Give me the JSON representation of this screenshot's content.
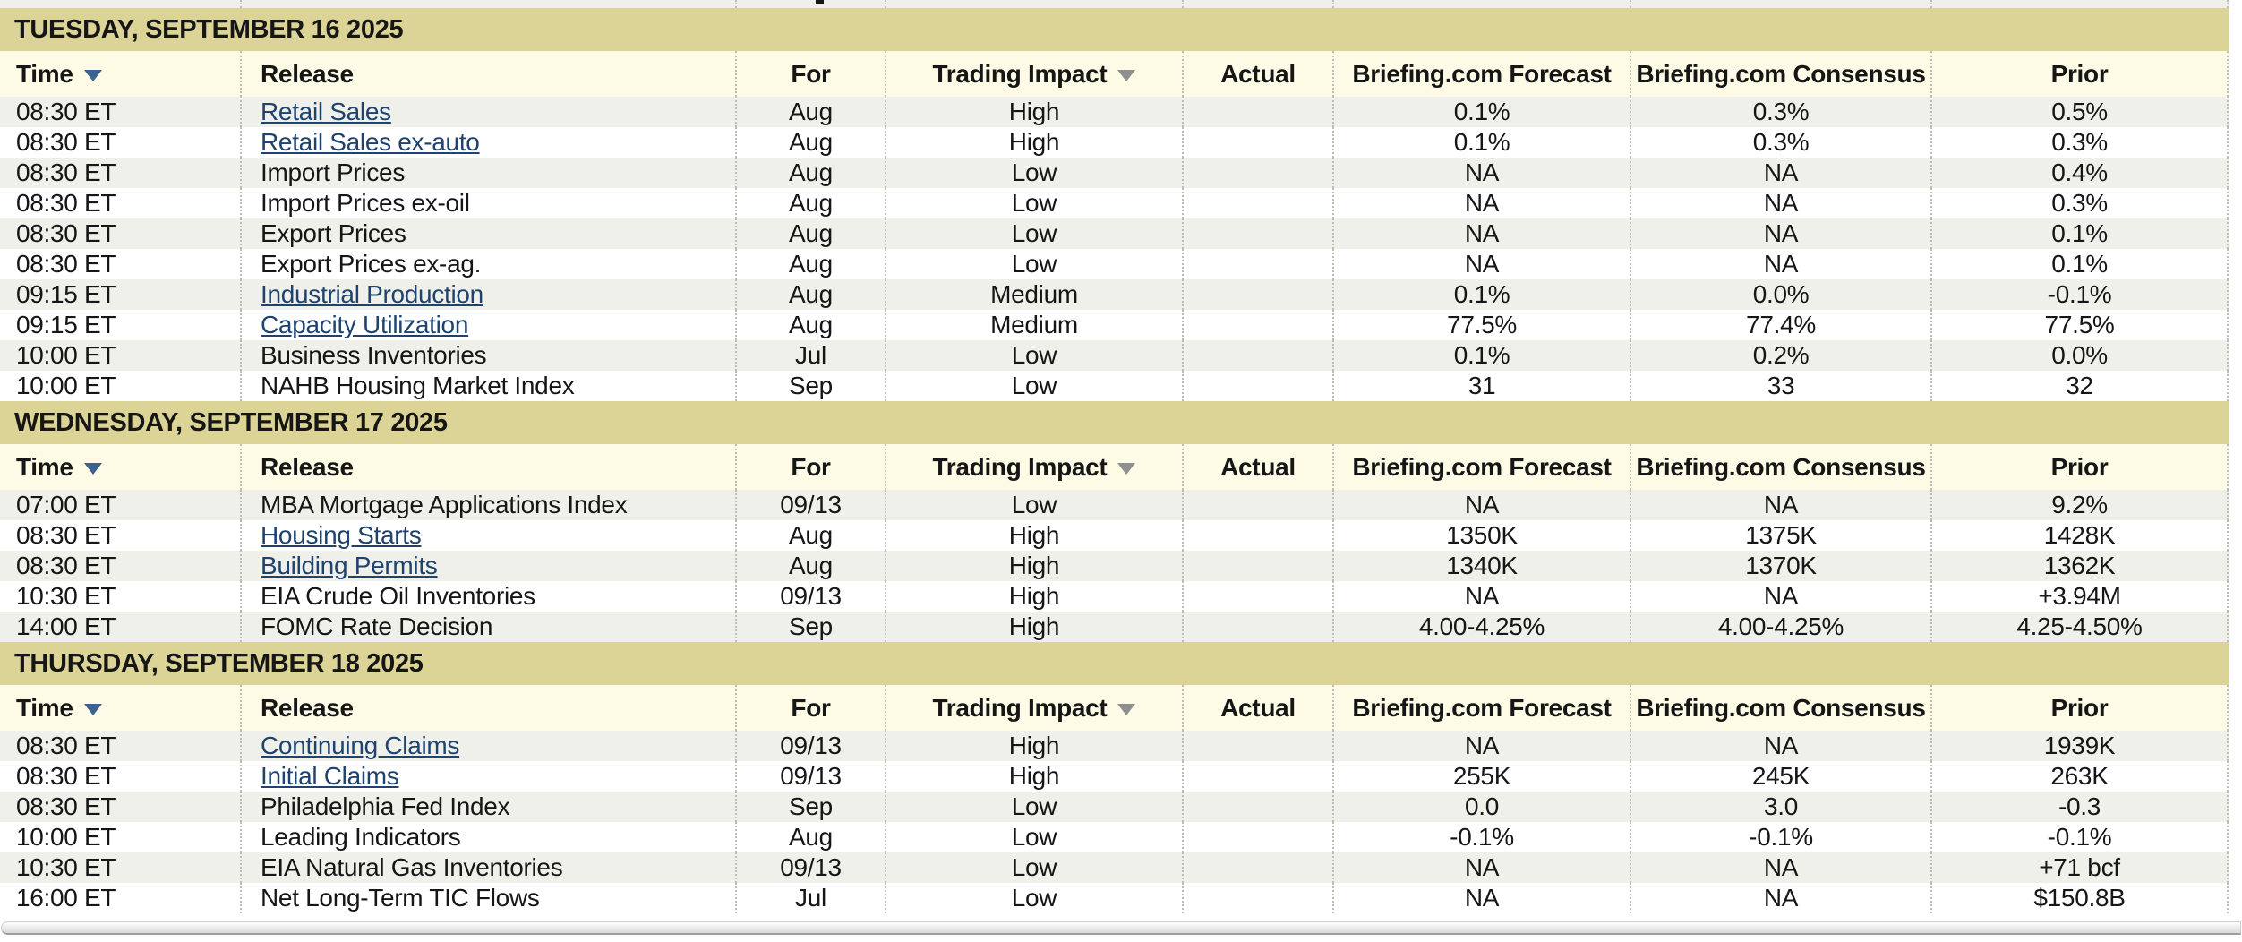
{
  "columns": [
    {
      "id": "time",
      "label": "Time",
      "sortable": true,
      "sort_icon": "sort-down-arrow-icon",
      "align": "left"
    },
    {
      "id": "release",
      "label": "Release",
      "sortable": false,
      "align": "left"
    },
    {
      "id": "for",
      "label": "For",
      "sortable": false,
      "align": "center"
    },
    {
      "id": "impact",
      "label": "Trading Impact",
      "sortable": true,
      "sort_icon": "sort-down-arrow-icon",
      "align": "center"
    },
    {
      "id": "actual",
      "label": "Actual",
      "sortable": false,
      "align": "center"
    },
    {
      "id": "forecast",
      "label": "Briefing.com Forecast",
      "sortable": false,
      "align": "center"
    },
    {
      "id": "consensus",
      "label": "Briefing.com Consensus",
      "sortable": false,
      "align": "center"
    },
    {
      "id": "prior",
      "label": "Prior",
      "sortable": false,
      "align": "center"
    }
  ],
  "sections": [
    {
      "date": "TUESDAY, SEPTEMBER 16 2025",
      "rows": [
        {
          "time": "08:30 ET",
          "release": "Retail Sales",
          "link": true,
          "for": "Aug",
          "impact": "High",
          "actual": "",
          "forecast": "0.1%",
          "consensus": "0.3%",
          "prior": "0.5%"
        },
        {
          "time": "08:30 ET",
          "release": "Retail Sales ex-auto",
          "link": true,
          "for": "Aug",
          "impact": "High",
          "actual": "",
          "forecast": "0.1%",
          "consensus": "0.3%",
          "prior": "0.3%"
        },
        {
          "time": "08:30 ET",
          "release": "Import Prices",
          "link": false,
          "for": "Aug",
          "impact": "Low",
          "actual": "",
          "forecast": "NA",
          "consensus": "NA",
          "prior": "0.4%"
        },
        {
          "time": "08:30 ET",
          "release": "Import Prices ex-oil",
          "link": false,
          "for": "Aug",
          "impact": "Low",
          "actual": "",
          "forecast": "NA",
          "consensus": "NA",
          "prior": "0.3%"
        },
        {
          "time": "08:30 ET",
          "release": "Export Prices",
          "link": false,
          "for": "Aug",
          "impact": "Low",
          "actual": "",
          "forecast": "NA",
          "consensus": "NA",
          "prior": "0.1%"
        },
        {
          "time": "08:30 ET",
          "release": "Export Prices ex-ag.",
          "link": false,
          "for": "Aug",
          "impact": "Low",
          "actual": "",
          "forecast": "NA",
          "consensus": "NA",
          "prior": "0.1%"
        },
        {
          "time": "09:15 ET",
          "release": "Industrial Production",
          "link": true,
          "for": "Aug",
          "impact": "Medium",
          "actual": "",
          "forecast": "0.1%",
          "consensus": "0.0%",
          "prior": "-0.1%"
        },
        {
          "time": "09:15 ET",
          "release": "Capacity Utilization",
          "link": true,
          "for": "Aug",
          "impact": "Medium",
          "actual": "",
          "forecast": "77.5%",
          "consensus": "77.4%",
          "prior": "77.5%"
        },
        {
          "time": "10:00 ET",
          "release": "Business Inventories",
          "link": false,
          "for": "Jul",
          "impact": "Low",
          "actual": "",
          "forecast": "0.1%",
          "consensus": "0.2%",
          "prior": "0.0%"
        },
        {
          "time": "10:00 ET",
          "release": "NAHB Housing Market Index",
          "link": false,
          "for": "Sep",
          "impact": "Low",
          "actual": "",
          "forecast": "31",
          "consensus": "33",
          "prior": "32"
        }
      ]
    },
    {
      "date": "WEDNESDAY, SEPTEMBER 17 2025",
      "rows": [
        {
          "time": "07:00 ET",
          "release": "MBA Mortgage Applications Index",
          "link": false,
          "for": "09/13",
          "impact": "Low",
          "actual": "",
          "forecast": "NA",
          "consensus": "NA",
          "prior": "9.2%"
        },
        {
          "time": "08:30 ET",
          "release": "Housing Starts",
          "link": true,
          "for": "Aug",
          "impact": "High",
          "actual": "",
          "forecast": "1350K",
          "consensus": "1375K",
          "prior": "1428K"
        },
        {
          "time": "08:30 ET",
          "release": "Building Permits",
          "link": true,
          "for": "Aug",
          "impact": "High",
          "actual": "",
          "forecast": "1340K",
          "consensus": "1370K",
          "prior": "1362K"
        },
        {
          "time": "10:30 ET",
          "release": "EIA Crude Oil Inventories",
          "link": false,
          "for": "09/13",
          "impact": "High",
          "actual": "",
          "forecast": "NA",
          "consensus": "NA",
          "prior": "+3.94M"
        },
        {
          "time": "14:00 ET",
          "release": "FOMC Rate Decision",
          "link": false,
          "for": "Sep",
          "impact": "High",
          "actual": "",
          "forecast": "4.00-4.25%",
          "consensus": "4.00-4.25%",
          "prior": "4.25-4.50%"
        }
      ]
    },
    {
      "date": "THURSDAY, SEPTEMBER 18 2025",
      "rows": [
        {
          "time": "08:30 ET",
          "release": "Continuing Claims",
          "link": true,
          "for": "09/13",
          "impact": "High",
          "actual": "",
          "forecast": "NA",
          "consensus": "NA",
          "prior": "1939K"
        },
        {
          "time": "08:30 ET",
          "release": "Initial Claims",
          "link": true,
          "for": "09/13",
          "impact": "High",
          "actual": "",
          "forecast": "255K",
          "consensus": "245K",
          "prior": "263K"
        },
        {
          "time": "08:30 ET",
          "release": "Philadelphia Fed Index",
          "link": false,
          "for": "Sep",
          "impact": "Low",
          "actual": "",
          "forecast": "0.0",
          "consensus": "3.0",
          "prior": "-0.3"
        },
        {
          "time": "10:00 ET",
          "release": "Leading Indicators",
          "link": false,
          "for": "Aug",
          "impact": "Low",
          "actual": "",
          "forecast": "-0.1%",
          "consensus": "-0.1%",
          "prior": "-0.1%"
        },
        {
          "time": "10:30 ET",
          "release": "EIA Natural Gas Inventories",
          "link": false,
          "for": "09/13",
          "impact": "Low",
          "actual": "",
          "forecast": "NA",
          "consensus": "NA",
          "prior": "+71 bcf"
        },
        {
          "time": "16:00 ET",
          "release": "Net Long-Term TIC Flows",
          "link": false,
          "for": "Jul",
          "impact": "Low",
          "actual": "",
          "forecast": "NA",
          "consensus": "NA",
          "prior": "$150.8B"
        }
      ]
    }
  ],
  "colors": {
    "date_band_bg": "#dbd496",
    "header_row_bg": "#fdfae5",
    "row_stripe_bg": "#eff0e9",
    "row_bg": "#ffffff",
    "link_color": "#1f436f",
    "time_sort_arrow": "#3a648f",
    "impact_sort_arrow": "#8f8f8f",
    "column_divider": "#bdbdb4"
  }
}
